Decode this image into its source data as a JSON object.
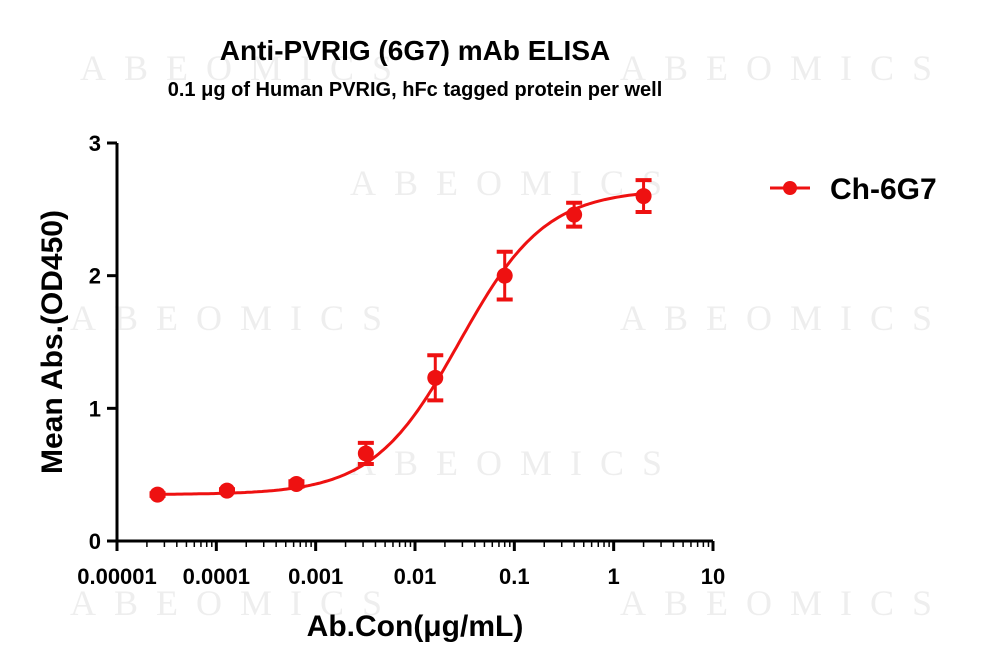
{
  "watermark": "ABEOMICS",
  "chart_data": {
    "type": "line",
    "title": "Anti-PVRIG (6G7) mAb ELISA",
    "subtitle": "0.1 μg of Human PVRIG, hFc tagged protein per well",
    "xlabel": "Ab.Con(μg/mL)",
    "ylabel": "Mean Abs.(OD450)",
    "xscale": "log",
    "xlim": [
      1e-05,
      10
    ],
    "ylim": [
      0,
      3
    ],
    "xticks": [
      1e-05,
      0.0001,
      0.001,
      0.01,
      0.1,
      1,
      10
    ],
    "xtick_labels": [
      "0.00001",
      "0.0001",
      "0.001",
      "0.01",
      "0.1",
      "1",
      "10"
    ],
    "yticks": [
      0,
      1,
      2,
      3
    ],
    "ytick_labels": [
      "0",
      "1",
      "2",
      "3"
    ],
    "legend_position": "top-right",
    "series": [
      {
        "name": "Ch-6G7",
        "color": "#ee1111",
        "x": [
          2.56e-05,
          0.000128,
          0.00064,
          0.0032,
          0.016,
          0.08,
          0.4,
          2
        ],
        "y": [
          0.35,
          0.38,
          0.43,
          0.66,
          1.23,
          2.0,
          2.46,
          2.6
        ],
        "error": [
          0.01,
          0.01,
          0.02,
          0.08,
          0.17,
          0.18,
          0.09,
          0.12
        ],
        "fit": {
          "model": "4PL",
          "bottom": 0.35,
          "top": 2.65,
          "ec50": 0.028,
          "hill": 1.0
        }
      }
    ]
  }
}
